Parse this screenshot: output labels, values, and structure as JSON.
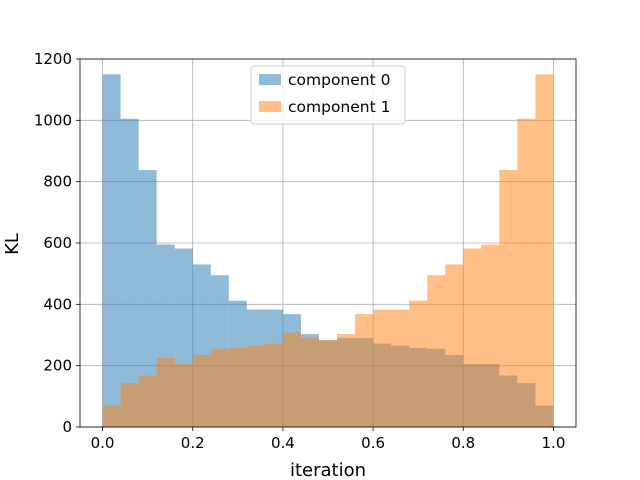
{
  "chart_data": {
    "type": "bar",
    "subtype": "overlaid-histogram",
    "title": "",
    "xlabel": "iteration",
    "ylabel": "KL",
    "xlim": [
      -0.05,
      1.05
    ],
    "ylim": [
      0,
      1200
    ],
    "xticks": [
      "0.0",
      "0.2",
      "0.4",
      "0.6",
      "0.8",
      "1.0"
    ],
    "yticks": [
      "0",
      "200",
      "400",
      "600",
      "800",
      "1000",
      "1200"
    ],
    "grid": true,
    "legend_position": "upper center",
    "bins": {
      "start": 0,
      "end": 1,
      "count": 25
    },
    "series": [
      {
        "name": "component 0",
        "color": "#1f77b4",
        "alpha": 0.5,
        "values": [
          1150,
          1005,
          838,
          595,
          582,
          530,
          495,
          412,
          383,
          383,
          368,
          303,
          283,
          290,
          290,
          272,
          265,
          258,
          255,
          235,
          205,
          205,
          168,
          143,
          70
        ]
      },
      {
        "name": "component 1",
        "color": "#ff7f0e",
        "alpha": 0.5,
        "values": [
          70,
          143,
          168,
          225,
          205,
          235,
          255,
          258,
          265,
          272,
          308,
          290,
          283,
          303,
          368,
          383,
          383,
          412,
          495,
          530,
          582,
          595,
          838,
          1005,
          1150
        ]
      }
    ]
  }
}
